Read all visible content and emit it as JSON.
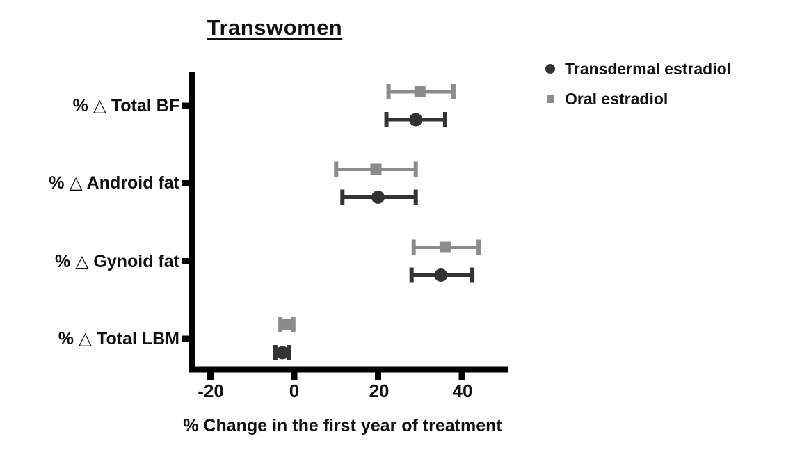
{
  "title": "Transwomen",
  "chart_data": {
    "type": "scatter",
    "subtype": "horizontal-dot-plot-with-error-bars",
    "title": "Transwomen",
    "xlabel": "% Change in the first year of treatment",
    "categories": [
      "% △ Total BF",
      "% △ Android fat",
      "% △ Gynoid fat",
      "% △ Total LBM"
    ],
    "x_ticks": [
      "-20",
      "0",
      "20",
      "40"
    ],
    "xlim": [
      -26,
      51
    ],
    "grid": false,
    "legend_position": "top-right",
    "series": [
      {
        "name": "Transdermal estradiol",
        "marker": "circle",
        "color": "#333335",
        "points": [
          {
            "category": "% △ Total BF",
            "value": 29,
            "lo": 22,
            "hi": 36
          },
          {
            "category": "% △ Android fat",
            "value": 20,
            "lo": 11.5,
            "hi": 29
          },
          {
            "category": "% △ Gynoid fat",
            "value": 35,
            "lo": 28,
            "hi": 42.5
          },
          {
            "category": "% △ Total LBM",
            "value": -2.8,
            "lo": -4.5,
            "hi": -1.2
          }
        ]
      },
      {
        "name": "Oral estradiol",
        "marker": "square",
        "color": "#8c8c8c",
        "points": [
          {
            "category": "% △ Total BF",
            "value": 30,
            "lo": 22.5,
            "hi": 38
          },
          {
            "category": "% △ Android fat",
            "value": 19.5,
            "lo": 10,
            "hi": 29
          },
          {
            "category": "% △ Gynoid fat",
            "value": 36,
            "lo": 28.5,
            "hi": 44
          },
          {
            "category": "% △ Total LBM",
            "value": -1.8,
            "lo": -3.3,
            "hi": -0.2
          }
        ]
      }
    ],
    "axis_color": "#000000"
  }
}
